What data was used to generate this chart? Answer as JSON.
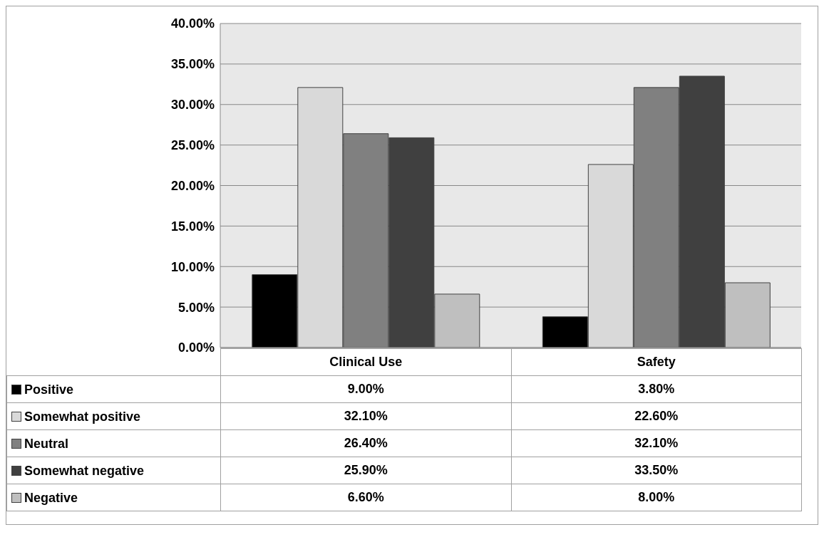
{
  "chart_data": {
    "type": "bar",
    "categories": [
      "Clinical Use",
      "Safety"
    ],
    "series": [
      {
        "name": "Positive",
        "color": "#000000",
        "values": [
          9.0,
          3.8
        ],
        "value_labels": [
          "9.00%",
          "3.80%"
        ]
      },
      {
        "name": "Somewhat positive",
        "color": "#d9d9d9",
        "values": [
          32.1,
          22.6
        ],
        "value_labels": [
          "32.10%",
          "22.60%"
        ]
      },
      {
        "name": "Neutral",
        "color": "#808080",
        "values": [
          26.4,
          32.1
        ],
        "value_labels": [
          "26.40%",
          "32.10%"
        ]
      },
      {
        "name": "Somewhat negative",
        "color": "#404040",
        "values": [
          25.9,
          33.5
        ],
        "value_labels": [
          "25.90%",
          "33.50%"
        ]
      },
      {
        "name": "Negative",
        "color": "#bfbfbf",
        "values": [
          6.6,
          8.0
        ],
        "value_labels": [
          "6.60%",
          "8.00%"
        ]
      }
    ],
    "ylim": [
      0,
      40
    ],
    "yticks": [
      {
        "value": 0,
        "label": "0.00%"
      },
      {
        "value": 5,
        "label": "5.00%"
      },
      {
        "value": 10,
        "label": "10.00%"
      },
      {
        "value": 15,
        "label": "15.00%"
      },
      {
        "value": 20,
        "label": "20.00%"
      },
      {
        "value": 25,
        "label": "25.00%"
      },
      {
        "value": 30,
        "label": "30.00%"
      },
      {
        "value": 35,
        "label": "35.00%"
      },
      {
        "value": 40,
        "label": "40.00%"
      }
    ],
    "grid": "y",
    "legend": "bottom"
  }
}
